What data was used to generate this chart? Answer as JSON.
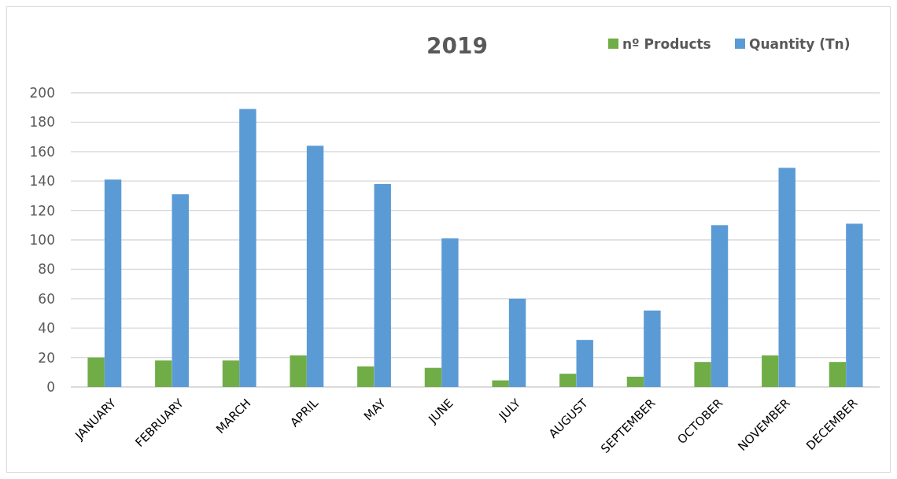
{
  "chart_data": {
    "type": "bar",
    "title": "2019",
    "categories": [
      "JANUARY",
      "FEBRUARY",
      "MARCH",
      "APRIL",
      "MAY",
      "JUNE",
      "JULY",
      "AUGUST",
      "SEPTEMBER",
      "OCTOBER",
      "NOVEMBER",
      "DECEMBER"
    ],
    "series": [
      {
        "name": "nº Products",
        "color": "#70ad47",
        "values": [
          20,
          18,
          18,
          21.5,
          14,
          13,
          4.5,
          9,
          7,
          17,
          21.5,
          17
        ]
      },
      {
        "name": "Quantity (Tn)",
        "color": "#5b9bd5",
        "values": [
          141,
          131,
          189,
          164,
          138,
          101,
          60,
          32,
          52,
          110,
          149,
          111
        ]
      }
    ],
    "ylim": [
      0,
      200
    ],
    "yticks": [
      0,
      20,
      40,
      60,
      80,
      100,
      120,
      140,
      160,
      180,
      200
    ],
    "grid": "y",
    "legend": "top right"
  }
}
